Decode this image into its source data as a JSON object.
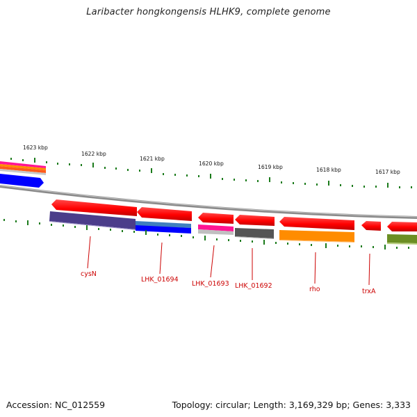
{
  "title": "Laribacter hongkongensis HLHK9, complete genome",
  "accession": "Accession: NC_012559",
  "summary": "Topology: circular; Length: 3,169,329 bp; Genes: 3,333",
  "ruler_labels": [
    "1623 kbp",
    "1622 kbp",
    "1621 kbp",
    "1620 kbp",
    "1619 kbp",
    "1618 kbp",
    "1617 kbp"
  ],
  "gene_labels": [
    "cysN",
    "LHK_01694",
    "LHK_01693",
    "LHK_01692",
    "rho",
    "trxA"
  ],
  "colors": {
    "forward_gene": "#ff0000",
    "backbone": "#808080",
    "ticks": "#1a7a1a",
    "label": "#cc0000",
    "purple": "#4b3d8a",
    "blue": "#0000ff",
    "steelblue": "#3f7fbf",
    "magenta": "#ff1493",
    "silver": "#c0c0c0",
    "darkgray": "#555555",
    "orange": "#ff8c00",
    "olive": "#6b8e23"
  }
}
